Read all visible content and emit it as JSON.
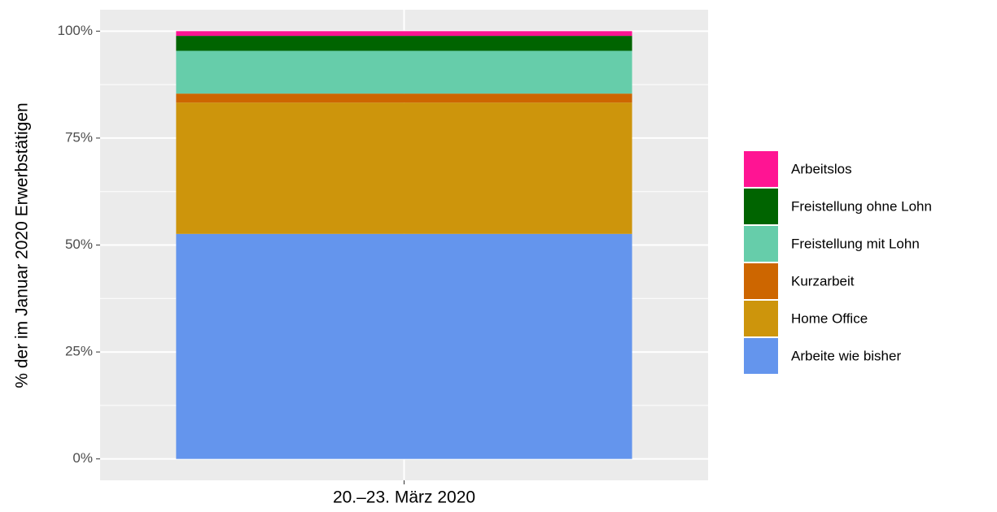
{
  "chart_data": {
    "type": "bar",
    "stacked": true,
    "y_label": "% der im Januar 2020 Erwerbstätigen",
    "categories": [
      "20.–23. März 2020"
    ],
    "series": [
      {
        "name": "Arbeite wie bisher",
        "color": "#6495ED",
        "values": [
          52.6
        ]
      },
      {
        "name": "Home Office",
        "color": "#CD950C",
        "values": [
          30.7
        ]
      },
      {
        "name": "Kurzarbeit",
        "color": "#CD6600",
        "values": [
          2.1
        ]
      },
      {
        "name": "Freistellung mit Lohn",
        "color": "#66CDAA",
        "values": [
          10.0
        ]
      },
      {
        "name": "Freistellung ohne Lohn",
        "color": "#006400",
        "values": [
          3.5
        ]
      },
      {
        "name": "Arbeitslos",
        "color": "#FF1493",
        "values": [
          1.1
        ]
      }
    ],
    "ylim": [
      -5,
      105
    ],
    "yticks": [
      {
        "value": 0,
        "label": "0%"
      },
      {
        "value": 25,
        "label": "25%"
      },
      {
        "value": 50,
        "label": "50%"
      },
      {
        "value": 75,
        "label": "75%"
      },
      {
        "value": 100,
        "label": "100%"
      }
    ],
    "grid": true,
    "legend": "right"
  }
}
